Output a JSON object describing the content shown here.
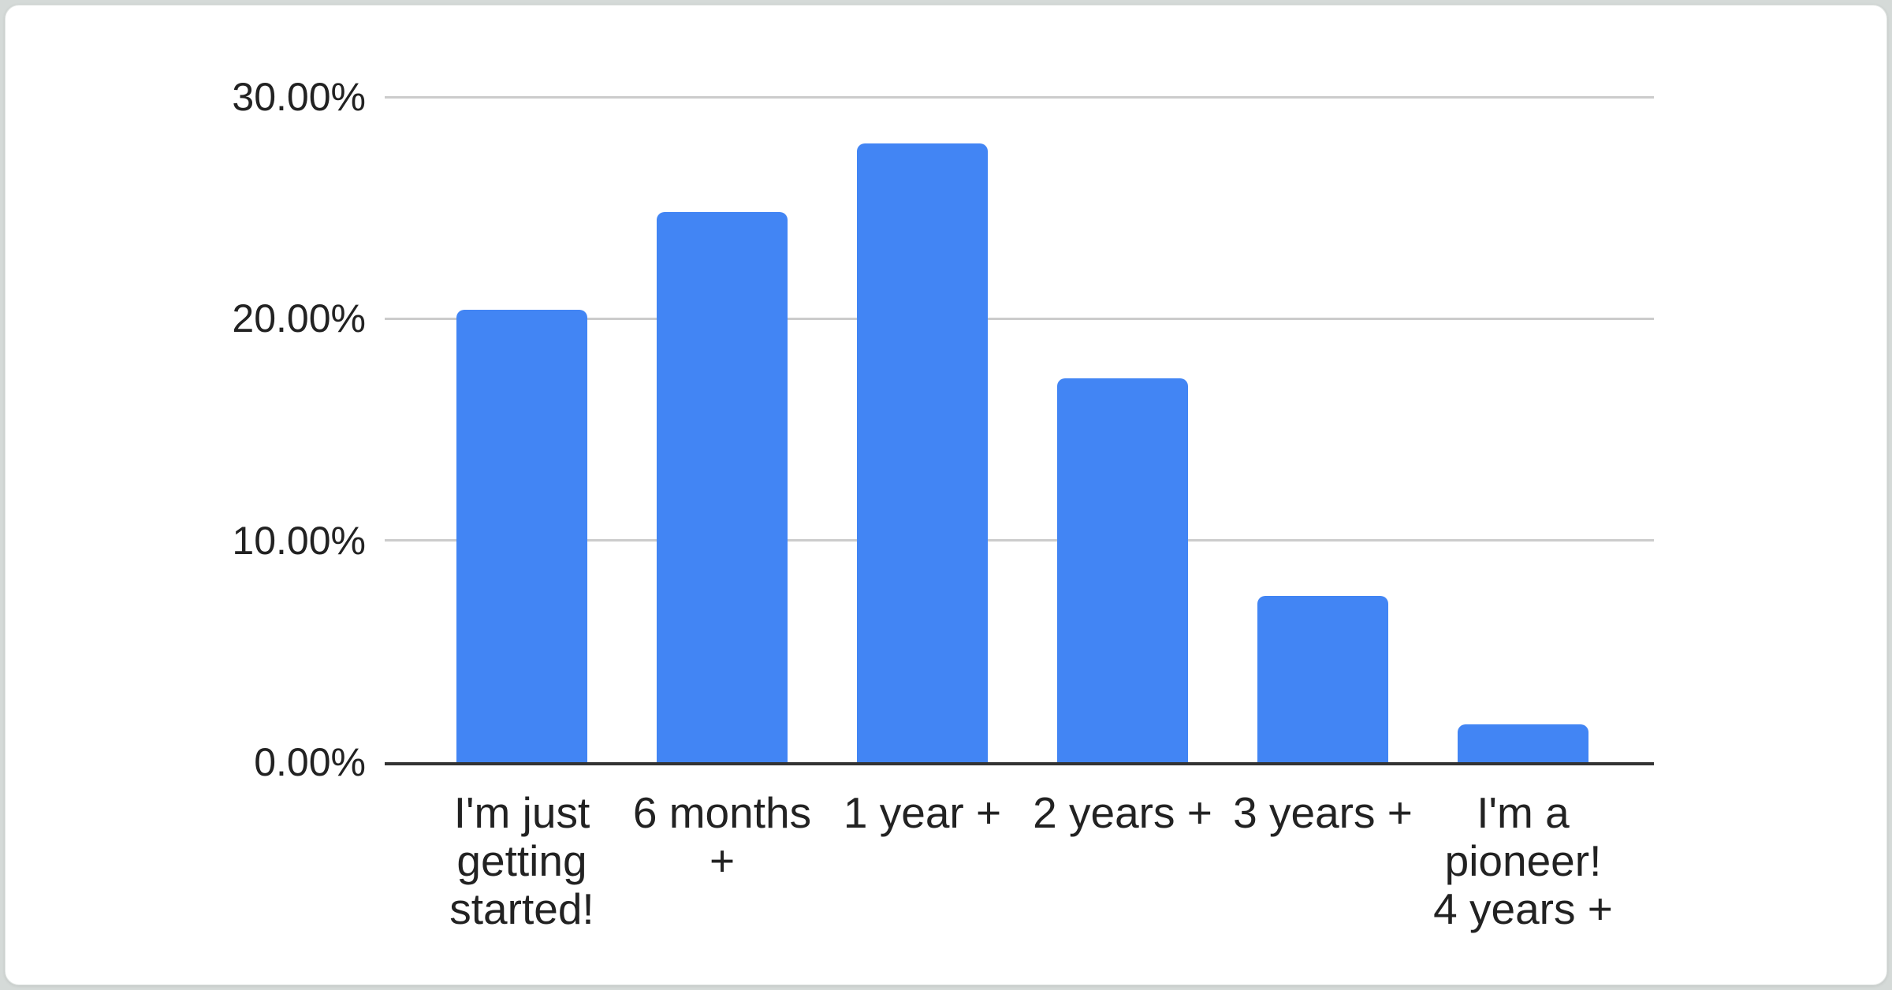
{
  "page": {
    "background_color": "#d5dad8",
    "card_color": "#ffffff"
  },
  "chart_data": {
    "type": "bar",
    "title": "",
    "xlabel": "",
    "ylabel": "",
    "categories": [
      "I'm just getting started!",
      "6 months +",
      "1 year +",
      "2 years +",
      "3 years +",
      "I'm a pioneer! 4 years +"
    ],
    "categories_wrapped": [
      [
        "I'm just",
        "getting",
        "started!"
      ],
      [
        "6 months",
        "+"
      ],
      [
        "1 year +"
      ],
      [
        "2 years +"
      ],
      [
        "3 years +"
      ],
      [
        "I'm a",
        "pioneer!",
        "4 years +"
      ]
    ],
    "values": [
      20.4,
      24.8,
      27.9,
      17.3,
      7.5,
      1.7
    ],
    "value_unit": "%",
    "ylim": [
      0,
      30
    ],
    "y_ticks": [
      {
        "value": 30,
        "label": "30.00%"
      },
      {
        "value": 20,
        "label": "20.00%"
      },
      {
        "value": 10,
        "label": "10.00%"
      },
      {
        "value": 0,
        "label": "0.00%"
      }
    ],
    "grid": true,
    "legend": "none",
    "colors": {
      "bar": "#4285f4",
      "gridline": "#cccccc",
      "axis": "#333333",
      "text": "#222222"
    }
  }
}
